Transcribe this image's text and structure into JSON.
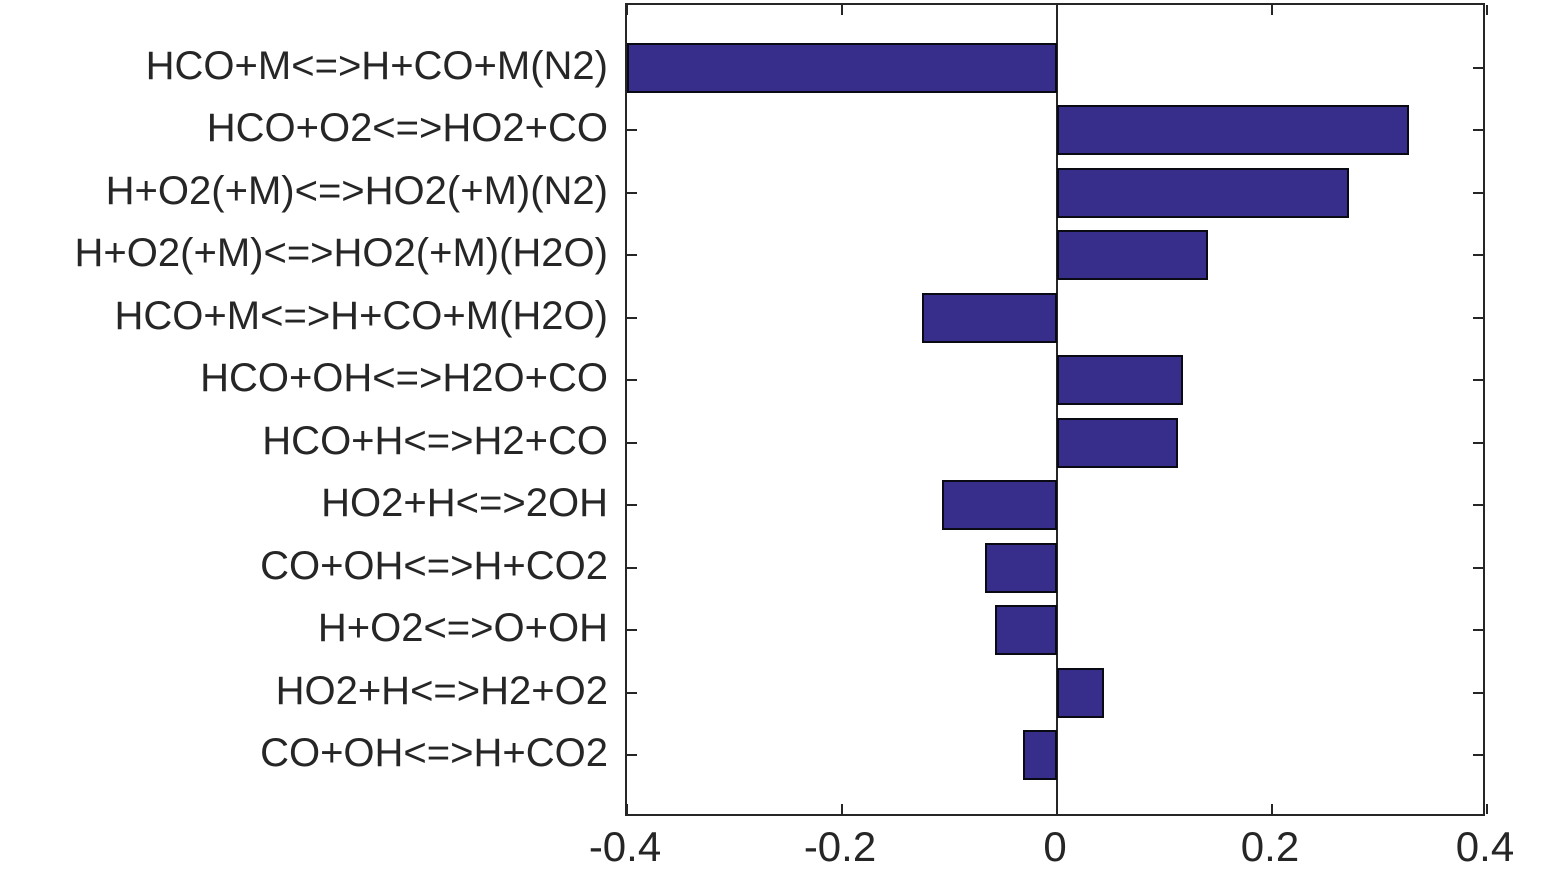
{
  "figure": {
    "background": "#ffffff",
    "text_color": "#262626",
    "axis_color": "#262626"
  },
  "chart_data": {
    "type": "bar",
    "orientation": "horizontal",
    "title": "",
    "xlabel": "",
    "ylabel": "",
    "grid": false,
    "legend": null,
    "xlim": [
      -0.4,
      0.4
    ],
    "x_ticks": [
      -0.4,
      -0.2,
      0,
      0.2,
      0.4
    ],
    "x_tick_labels": [
      "-0.4",
      "-0.2",
      "0",
      "0.2",
      "0.4"
    ],
    "bar_color": "#372D8A",
    "bar_edge_color": "#0a0a14",
    "categories": [
      "HCO+M<=>H+CO+M(N2)",
      "HCO+O2<=>HO2+CO",
      "H+O2(+M)<=>HO2(+M)(N2)",
      "H+O2(+M)<=>HO2(+M)(H2O)",
      "HCO+M<=>H+CO+M(H2O)",
      "HCO+OH<=>H2O+CO",
      "HCO+H<=>H2+CO",
      "HO2+H<=>2OH",
      "CO+OH<=>H+CO2",
      "H+O2<=>O+OH",
      "HO2+H<=>H2+O2",
      "CO+OH<=>H+CO2"
    ],
    "values": [
      -0.4,
      0.327,
      0.272,
      0.14,
      -0.126,
      0.117,
      0.113,
      -0.107,
      -0.067,
      -0.058,
      0.044,
      -0.032
    ]
  }
}
